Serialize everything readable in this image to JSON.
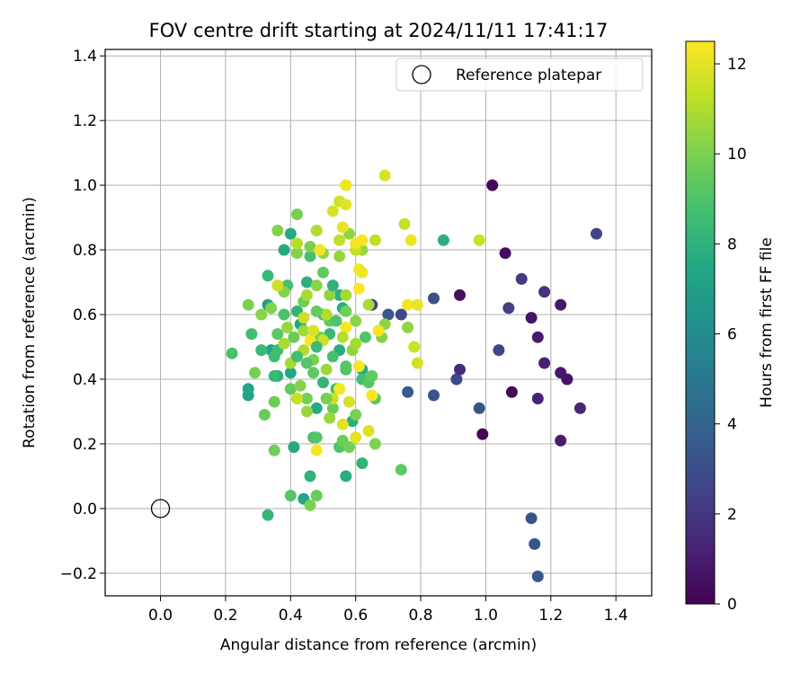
{
  "chart_data": {
    "type": "scatter",
    "title": "FOV centre drift starting at 2024/11/11 17:41:17",
    "xlabel": "Angular distance from reference (arcmin)",
    "ylabel": "Rotation from reference (arcmin)",
    "xlim": [
      -0.17,
      1.51
    ],
    "ylim": [
      -0.27,
      1.42
    ],
    "x_ticks": [
      0.0,
      0.2,
      0.4,
      0.6,
      0.8,
      1.0,
      1.2,
      1.4
    ],
    "x_tick_labels": [
      "0.0",
      "0.2",
      "0.4",
      "0.6",
      "0.8",
      "1.0",
      "1.2",
      "1.4"
    ],
    "y_ticks": [
      -0.2,
      0.0,
      0.2,
      0.4,
      0.6,
      0.8,
      1.0,
      1.2,
      1.4
    ],
    "y_tick_labels": [
      "−0.2",
      "0.0",
      "0.2",
      "0.4",
      "0.6",
      "0.8",
      "1.0",
      "1.2",
      "1.4"
    ],
    "grid": true,
    "legend": {
      "position": "top-right",
      "entries": [
        "Reference platepar"
      ]
    },
    "reference_point": {
      "x": 0.0,
      "y": 0.0,
      "marker": "open-circle",
      "color": "#000000"
    },
    "colorbar": {
      "label": "Hours from first FF file",
      "colormap": "viridis",
      "range": [
        0,
        12.5
      ],
      "ticks": [
        0,
        2,
        4,
        6,
        8,
        10,
        12
      ],
      "tick_labels": [
        "0",
        "2",
        "4",
        "6",
        "8",
        "10",
        "12"
      ]
    },
    "series": [
      {
        "values_format": "[x, y, hours]",
        "points": [
          [
            1.02,
            1.0,
            0.3
          ],
          [
            0.99,
            0.23,
            0.2
          ],
          [
            1.06,
            0.79,
            0.4
          ],
          [
            0.92,
            0.66,
            0.5
          ],
          [
            1.08,
            0.36,
            0.3
          ],
          [
            1.14,
            0.59,
            0.6
          ],
          [
            1.16,
            0.53,
            0.9
          ],
          [
            1.23,
            0.63,
            0.8
          ],
          [
            1.25,
            0.4,
            0.7
          ],
          [
            1.23,
            0.42,
            0.9
          ],
          [
            1.23,
            0.21,
            1.0
          ],
          [
            1.18,
            0.45,
            1.1
          ],
          [
            1.16,
            0.34,
            1.2
          ],
          [
            1.29,
            0.31,
            1.4
          ],
          [
            0.92,
            0.43,
            1.5
          ],
          [
            1.18,
            0.67,
            1.8
          ],
          [
            1.11,
            0.71,
            2.1
          ],
          [
            1.07,
            0.62,
            2.3
          ],
          [
            1.04,
            0.49,
            2.6
          ],
          [
            1.34,
            0.85,
            2.6
          ],
          [
            0.91,
            0.4,
            2.7
          ],
          [
            0.98,
            0.31,
            3.2
          ],
          [
            0.84,
            0.35,
            3.1
          ],
          [
            0.84,
            0.65,
            3.0
          ],
          [
            0.74,
            0.6,
            2.8
          ],
          [
            0.7,
            0.6,
            3.3
          ],
          [
            0.65,
            0.63,
            2.5
          ],
          [
            0.76,
            0.36,
            3.5
          ],
          [
            1.14,
            -0.03,
            3.2
          ],
          [
            1.15,
            -0.11,
            3.3
          ],
          [
            1.16,
            -0.21,
            3.4
          ],
          [
            0.87,
            0.83,
            7.8
          ],
          [
            0.27,
            0.35,
            7.2
          ],
          [
            0.27,
            0.37,
            7.5
          ],
          [
            0.34,
            0.49,
            7.2
          ],
          [
            0.33,
            0.63,
            7.0
          ],
          [
            0.4,
            0.85,
            7.6
          ],
          [
            0.45,
            0.7,
            7.9
          ],
          [
            0.41,
            0.19,
            7.6
          ],
          [
            0.44,
            0.03,
            7.5
          ],
          [
            0.46,
            0.1,
            8.0
          ],
          [
            0.33,
            -0.02,
            8.2
          ],
          [
            0.57,
            0.1,
            7.8
          ],
          [
            0.62,
            0.14,
            8.1
          ],
          [
            0.62,
            0.43,
            7.7
          ],
          [
            0.56,
            0.62,
            7.7
          ],
          [
            0.4,
            0.42,
            7.5
          ],
          [
            0.36,
            0.41,
            7.8
          ],
          [
            0.48,
            0.31,
            7.6
          ],
          [
            0.59,
            0.27,
            7.9
          ],
          [
            0.42,
            0.61,
            8.1
          ],
          [
            0.43,
            0.57,
            7.4
          ],
          [
            0.38,
            0.8,
            7.6
          ],
          [
            0.52,
            0.54,
            8.3
          ],
          [
            0.55,
            0.49,
            7.7
          ],
          [
            0.55,
            0.66,
            7.9
          ],
          [
            0.33,
            0.72,
            8.4
          ],
          [
            0.36,
            0.49,
            8.6
          ],
          [
            0.35,
            0.41,
            8.3
          ],
          [
            0.22,
            0.48,
            8.9
          ],
          [
            0.28,
            0.54,
            8.7
          ],
          [
            0.39,
            0.69,
            8.8
          ],
          [
            0.46,
            0.78,
            8.8
          ],
          [
            0.5,
            0.6,
            8.6
          ],
          [
            0.47,
            0.22,
            8.9
          ],
          [
            0.48,
            0.22,
            9.1
          ],
          [
            0.55,
            0.19,
            9.0
          ],
          [
            0.54,
            0.37,
            8.5
          ],
          [
            0.57,
            0.43,
            8.9
          ],
          [
            0.62,
            0.4,
            8.7
          ],
          [
            0.64,
            0.39,
            9.2
          ],
          [
            0.65,
            0.41,
            9.4
          ],
          [
            0.66,
            0.34,
            9.3
          ],
          [
            0.63,
            0.53,
            9.0
          ],
          [
            0.74,
            0.12,
            9.4
          ],
          [
            0.4,
            0.04,
            9.2
          ],
          [
            0.48,
            0.04,
            9.6
          ],
          [
            0.46,
            0.01,
            10.0
          ],
          [
            0.35,
            0.18,
            9.8
          ],
          [
            0.32,
            0.29,
            9.6
          ],
          [
            0.35,
            0.33,
            9.7
          ],
          [
            0.29,
            0.42,
            9.9
          ],
          [
            0.27,
            0.63,
            10.0
          ],
          [
            0.31,
            0.6,
            10.3
          ],
          [
            0.34,
            0.62,
            10.1
          ],
          [
            0.36,
            0.86,
            10.2
          ],
          [
            0.42,
            0.91,
            9.9
          ],
          [
            0.42,
            0.79,
            10.1
          ],
          [
            0.46,
            0.81,
            10.0
          ],
          [
            0.38,
            0.67,
            10.2
          ],
          [
            0.41,
            0.53,
            9.6
          ],
          [
            0.44,
            0.64,
            9.7
          ],
          [
            0.45,
            0.34,
            9.8
          ],
          [
            0.47,
            0.46,
            10.0
          ],
          [
            0.49,
            0.53,
            9.9
          ],
          [
            0.52,
            0.58,
            9.5
          ],
          [
            0.53,
            0.31,
            9.6
          ],
          [
            0.56,
            0.21,
            9.7
          ],
          [
            0.58,
            0.19,
            9.8
          ],
          [
            0.6,
            0.29,
            10.0
          ],
          [
            0.66,
            0.2,
            10.1
          ],
          [
            0.68,
            0.53,
            10.2
          ],
          [
            0.69,
            0.57,
            10.3
          ],
          [
            0.76,
            0.56,
            10.4
          ],
          [
            0.6,
            0.58,
            10.3
          ],
          [
            0.52,
            0.66,
            10.4
          ],
          [
            0.48,
            0.69,
            10.3
          ],
          [
            0.5,
            0.79,
            10.4
          ],
          [
            0.55,
            0.78,
            10.5
          ],
          [
            0.58,
            0.85,
            10.4
          ],
          [
            0.62,
            0.8,
            10.5
          ],
          [
            0.45,
            0.3,
            10.5
          ],
          [
            0.51,
            0.43,
            10.6
          ],
          [
            0.55,
            0.37,
            10.7
          ],
          [
            0.4,
            0.45,
            10.8
          ],
          [
            0.38,
            0.51,
            10.9
          ],
          [
            0.44,
            0.49,
            11.0
          ],
          [
            0.48,
            0.86,
            11.0
          ],
          [
            0.57,
            0.66,
            10.8
          ],
          [
            0.64,
            0.63,
            10.9
          ],
          [
            0.42,
            0.82,
            11.2
          ],
          [
            0.51,
            0.6,
            11.1
          ],
          [
            0.55,
            0.83,
            11.3
          ],
          [
            0.6,
            0.8,
            11.4
          ],
          [
            0.66,
            0.83,
            11.3
          ],
          [
            0.75,
            0.88,
            11.4
          ],
          [
            0.78,
            0.5,
            11.5
          ],
          [
            0.79,
            0.45,
            11.7
          ],
          [
            0.55,
            0.95,
            11.6
          ],
          [
            0.53,
            0.92,
            11.8
          ],
          [
            0.69,
            1.03,
            11.8
          ],
          [
            0.98,
            0.83,
            11.5
          ],
          [
            0.36,
            0.69,
            11.6
          ],
          [
            0.42,
            0.34,
            11.4
          ],
          [
            0.5,
            0.52,
            11.6
          ],
          [
            0.53,
            0.34,
            11.5
          ],
          [
            0.58,
            0.33,
            11.7
          ],
          [
            0.56,
            0.26,
            11.9
          ],
          [
            0.6,
            0.22,
            12.0
          ],
          [
            0.64,
            0.24,
            11.8
          ],
          [
            0.57,
            0.94,
            12.0
          ],
          [
            0.56,
            0.87,
            12.1
          ],
          [
            0.57,
            1.0,
            12.2
          ],
          [
            0.6,
            0.82,
            12.3
          ],
          [
            0.62,
            0.83,
            12.4
          ],
          [
            0.61,
            0.74,
            12.3
          ],
          [
            0.62,
            0.73,
            12.2
          ],
          [
            0.61,
            0.68,
            12.5
          ],
          [
            0.48,
            0.18,
            12.4
          ],
          [
            0.55,
            0.37,
            12.3
          ],
          [
            0.57,
            0.56,
            12.4
          ],
          [
            0.67,
            0.55,
            12.3
          ],
          [
            0.65,
            0.35,
            12.4
          ],
          [
            0.77,
            0.83,
            12.2
          ],
          [
            0.76,
            0.63,
            12.3
          ],
          [
            0.79,
            0.63,
            12.1
          ],
          [
            0.61,
            0.44,
            12.4
          ],
          [
            0.49,
            0.8,
            12.2
          ],
          [
            0.46,
            0.52,
            12.4
          ],
          [
            0.44,
            0.55,
            10.7
          ],
          [
            0.36,
            0.54,
            9.3
          ],
          [
            0.31,
            0.49,
            8.4
          ],
          [
            0.47,
            0.42,
            9.4
          ],
          [
            0.5,
            0.39,
            8.2
          ],
          [
            0.45,
            0.45,
            9.1
          ],
          [
            0.53,
            0.47,
            8.8
          ],
          [
            0.4,
            0.37,
            9.5
          ],
          [
            0.51,
            0.34,
            9.9
          ],
          [
            0.57,
            0.44,
            9.2
          ],
          [
            0.52,
            0.28,
            10.6
          ],
          [
            0.59,
            0.49,
            10.4
          ],
          [
            0.42,
            0.47,
            8.7
          ],
          [
            0.48,
            0.61,
            9.6
          ],
          [
            0.54,
            0.58,
            9.0
          ],
          [
            0.6,
            0.51,
            10.8
          ],
          [
            0.43,
            0.38,
            10.2
          ],
          [
            0.38,
            0.6,
            8.9
          ],
          [
            0.45,
            0.66,
            10.9
          ],
          [
            0.5,
            0.73,
            9.4
          ],
          [
            0.53,
            0.69,
            8.0
          ],
          [
            0.57,
            0.61,
            9.8
          ],
          [
            0.56,
            0.53,
            11.1
          ],
          [
            0.48,
            0.5,
            8.5
          ],
          [
            0.39,
            0.56,
            10.5
          ],
          [
            0.44,
            0.59,
            11.5
          ],
          [
            0.47,
            0.55,
            11.8
          ],
          [
            0.35,
            0.47,
            8.6
          ]
        ]
      }
    ]
  }
}
